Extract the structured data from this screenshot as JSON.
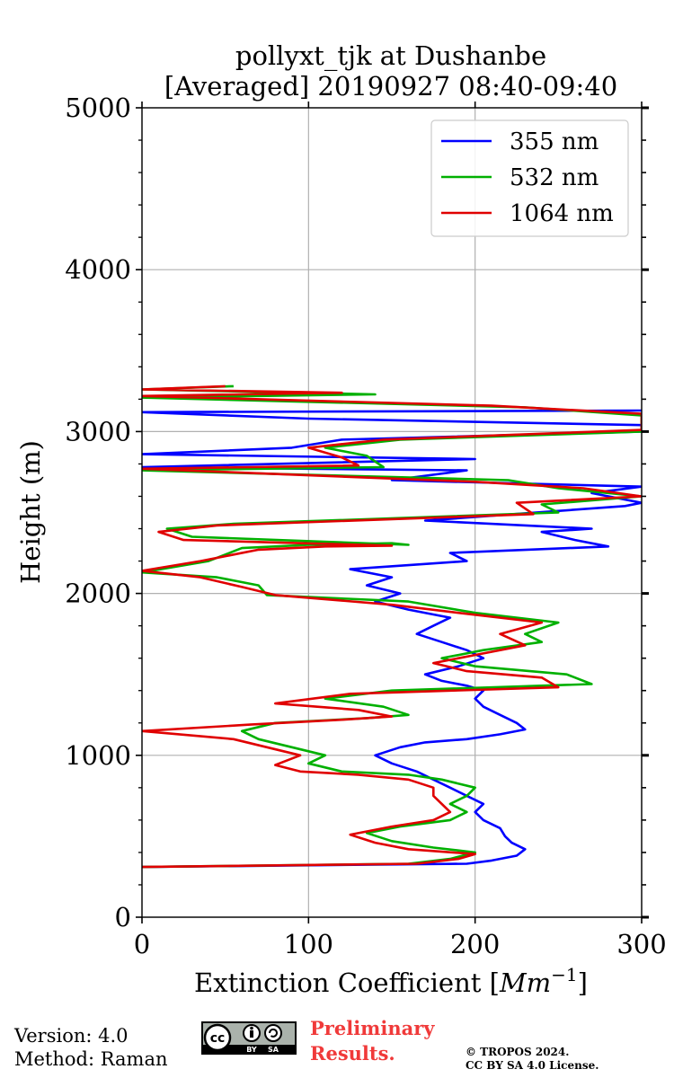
{
  "chart_data": {
    "type": "line",
    "title_line1": "pollyxt_tjk at Dushanbe",
    "title_line2": "[Averaged] 20190927 08:40-09:40",
    "xlabel": "Extinction Coefficient [",
    "xlabel_unit": "Mm",
    "xlabel_exp": "−1",
    "xlabel_close": "]",
    "ylabel": "Height (m)",
    "xlim": [
      0,
      300
    ],
    "ylim": [
      0,
      5000
    ],
    "xticks": [
      0,
      100,
      200,
      300
    ],
    "yticks": [
      0,
      1000,
      2000,
      3000,
      4000,
      5000
    ],
    "grid": true,
    "legend_location": "top-right",
    "series": [
      {
        "name": "355 nm",
        "color": "#0000ff",
        "points": [
          [
            0,
            310
          ],
          [
            195,
            330
          ],
          [
            210,
            350
          ],
          [
            225,
            380
          ],
          [
            230,
            420
          ],
          [
            222,
            460
          ],
          [
            218,
            500
          ],
          [
            215,
            550
          ],
          [
            205,
            600
          ],
          [
            200,
            650
          ],
          [
            205,
            700
          ],
          [
            195,
            750
          ],
          [
            185,
            800
          ],
          [
            175,
            850
          ],
          [
            165,
            900
          ],
          [
            150,
            950
          ],
          [
            140,
            1000
          ],
          [
            155,
            1050
          ],
          [
            170,
            1080
          ],
          [
            195,
            1100
          ],
          [
            215,
            1130
          ],
          [
            230,
            1160
          ],
          [
            225,
            1200
          ],
          [
            215,
            1250
          ],
          [
            205,
            1300
          ],
          [
            200,
            1350
          ],
          [
            205,
            1400
          ],
          [
            195,
            1430
          ],
          [
            180,
            1460
          ],
          [
            170,
            1500
          ],
          [
            190,
            1550
          ],
          [
            205,
            1600
          ],
          [
            195,
            1650
          ],
          [
            180,
            1700
          ],
          [
            165,
            1750
          ],
          [
            175,
            1800
          ],
          [
            185,
            1850
          ],
          [
            160,
            1900
          ],
          [
            140,
            1950
          ],
          [
            155,
            2000
          ],
          [
            135,
            2050
          ],
          [
            150,
            2100
          ],
          [
            125,
            2150
          ],
          [
            195,
            2200
          ],
          [
            185,
            2250
          ],
          [
            280,
            2290
          ],
          [
            260,
            2330
          ],
          [
            240,
            2380
          ],
          [
            270,
            2400
          ],
          [
            170,
            2450
          ],
          [
            290,
            2540
          ],
          [
            300,
            2560
          ],
          [
            270,
            2620
          ],
          [
            300,
            2660
          ],
          [
            150,
            2700
          ],
          [
            195,
            2760
          ],
          [
            0,
            2780
          ],
          [
            200,
            2830
          ],
          [
            0,
            2860
          ],
          [
            90,
            2900
          ],
          [
            120,
            2950
          ],
          [
            300,
            3000
          ],
          [
            300,
            3040
          ],
          [
            100,
            3080
          ],
          [
            0,
            3120
          ],
          [
            300,
            3130
          ]
        ]
      },
      {
        "name": "532 nm",
        "color": "#00b000",
        "points": [
          [
            0,
            310
          ],
          [
            160,
            330
          ],
          [
            185,
            360
          ],
          [
            200,
            400
          ],
          [
            175,
            430
          ],
          [
            150,
            470
          ],
          [
            135,
            520
          ],
          [
            155,
            560
          ],
          [
            185,
            600
          ],
          [
            195,
            650
          ],
          [
            185,
            700
          ],
          [
            195,
            750
          ],
          [
            200,
            800
          ],
          [
            180,
            850
          ],
          [
            160,
            880
          ],
          [
            120,
            900
          ],
          [
            100,
            950
          ],
          [
            110,
            1000
          ],
          [
            90,
            1050
          ],
          [
            70,
            1100
          ],
          [
            60,
            1150
          ],
          [
            80,
            1200
          ],
          [
            135,
            1230
          ],
          [
            160,
            1250
          ],
          [
            145,
            1300
          ],
          [
            110,
            1350
          ],
          [
            150,
            1400
          ],
          [
            270,
            1440
          ],
          [
            255,
            1500
          ],
          [
            200,
            1550
          ],
          [
            180,
            1600
          ],
          [
            205,
            1650
          ],
          [
            240,
            1700
          ],
          [
            230,
            1750
          ],
          [
            250,
            1820
          ],
          [
            200,
            1880
          ],
          [
            160,
            1950
          ],
          [
            75,
            1990
          ],
          [
            70,
            2050
          ],
          [
            45,
            2100
          ],
          [
            0,
            2130
          ],
          [
            40,
            2200
          ],
          [
            60,
            2280
          ],
          [
            100,
            2300
          ],
          [
            150,
            2310
          ],
          [
            160,
            2300
          ],
          [
            30,
            2350
          ],
          [
            15,
            2400
          ],
          [
            55,
            2430
          ],
          [
            250,
            2500
          ],
          [
            240,
            2550
          ],
          [
            300,
            2600
          ],
          [
            250,
            2650
          ],
          [
            220,
            2700
          ],
          [
            0,
            2760
          ],
          [
            145,
            2780
          ],
          [
            135,
            2850
          ],
          [
            110,
            2900
          ],
          [
            155,
            2950
          ],
          [
            300,
            3000
          ],
          [
            300,
            3050
          ],
          [
            300,
            3100
          ],
          [
            230,
            3150
          ],
          [
            0,
            3210
          ],
          [
            140,
            3230
          ],
          [
            0,
            3260
          ],
          [
            55,
            3280
          ]
        ]
      },
      {
        "name": "1064 nm",
        "color": "#e00000",
        "points": [
          [
            0,
            310
          ],
          [
            165,
            330
          ],
          [
            190,
            360
          ],
          [
            200,
            390
          ],
          [
            160,
            420
          ],
          [
            140,
            460
          ],
          [
            125,
            510
          ],
          [
            150,
            560
          ],
          [
            175,
            600
          ],
          [
            185,
            650
          ],
          [
            180,
            700
          ],
          [
            175,
            750
          ],
          [
            175,
            800
          ],
          [
            160,
            850
          ],
          [
            130,
            880
          ],
          [
            95,
            900
          ],
          [
            80,
            940
          ],
          [
            95,
            1000
          ],
          [
            75,
            1050
          ],
          [
            55,
            1100
          ],
          [
            0,
            1150
          ],
          [
            65,
            1190
          ],
          [
            120,
            1220
          ],
          [
            150,
            1240
          ],
          [
            130,
            1280
          ],
          [
            80,
            1320
          ],
          [
            125,
            1380
          ],
          [
            250,
            1420
          ],
          [
            240,
            1480
          ],
          [
            195,
            1520
          ],
          [
            175,
            1570
          ],
          [
            200,
            1620
          ],
          [
            230,
            1680
          ],
          [
            215,
            1750
          ],
          [
            240,
            1820
          ],
          [
            190,
            1880
          ],
          [
            150,
            1930
          ],
          [
            80,
            1990
          ],
          [
            60,
            2040
          ],
          [
            35,
            2100
          ],
          [
            0,
            2140
          ],
          [
            35,
            2200
          ],
          [
            70,
            2270
          ],
          [
            110,
            2290
          ],
          [
            150,
            2295
          ],
          [
            25,
            2330
          ],
          [
            10,
            2380
          ],
          [
            45,
            2420
          ],
          [
            235,
            2490
          ],
          [
            225,
            2560
          ],
          [
            300,
            2600
          ],
          [
            265,
            2650
          ],
          [
            200,
            2690
          ],
          [
            0,
            2770
          ],
          [
            130,
            2790
          ],
          [
            120,
            2840
          ],
          [
            100,
            2900
          ],
          [
            145,
            2950
          ],
          [
            300,
            3010
          ],
          [
            300,
            3060
          ],
          [
            300,
            3110
          ],
          [
            210,
            3160
          ],
          [
            0,
            3220
          ],
          [
            120,
            3240
          ],
          [
            0,
            3260
          ],
          [
            50,
            3280
          ]
        ]
      }
    ]
  },
  "footer": {
    "version": "Version: 4.0",
    "method": "Method: Raman",
    "preliminary_line1": "Preliminary",
    "preliminary_line2": "Results.",
    "copyright_line1": "© TROPOS 2024.",
    "copyright_line2": "CC BY SA 4.0 License."
  },
  "badge": {
    "cc": "cc",
    "by": "BY",
    "sa": "SA"
  }
}
